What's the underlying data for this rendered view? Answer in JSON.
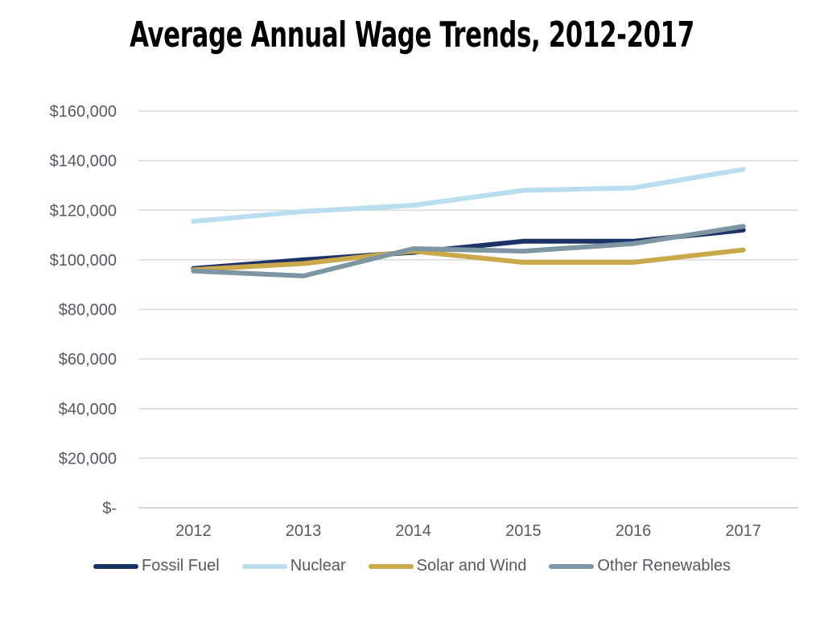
{
  "chart_data": {
    "type": "line",
    "title": "Average Annual Wage Trends, 2012-2017",
    "xlabel": "",
    "ylabel": "",
    "categories": [
      "2012",
      "2013",
      "2014",
      "2015",
      "2016",
      "2017"
    ],
    "ylim": [
      0,
      160000
    ],
    "yticks": [
      0,
      20000,
      40000,
      60000,
      80000,
      100000,
      120000,
      140000,
      160000
    ],
    "ytick_labels": [
      "$-",
      "$20,000",
      "$40,000",
      "$60,000",
      "$80,000",
      "$100,000",
      "$120,000",
      "$140,000",
      "$160,000"
    ],
    "grid": "horizontal",
    "legend_position": "bottom",
    "series": [
      {
        "name": "Fossil Fuel",
        "color": "#1b3366",
        "values": [
          96500,
          100000,
          103000,
          107500,
          107500,
          112000
        ]
      },
      {
        "name": "Nuclear",
        "color": "#b8def0",
        "values": [
          115500,
          119500,
          122000,
          128000,
          129000,
          136500
        ]
      },
      {
        "name": "Solar and Wind",
        "color": "#c9a94a",
        "values": [
          96000,
          98500,
          103500,
          99000,
          99000,
          104000
        ]
      },
      {
        "name": "Other Renewables",
        "color": "#7e95a4",
        "values": [
          95500,
          93500,
          104500,
          103500,
          106500,
          113500
        ]
      }
    ]
  }
}
